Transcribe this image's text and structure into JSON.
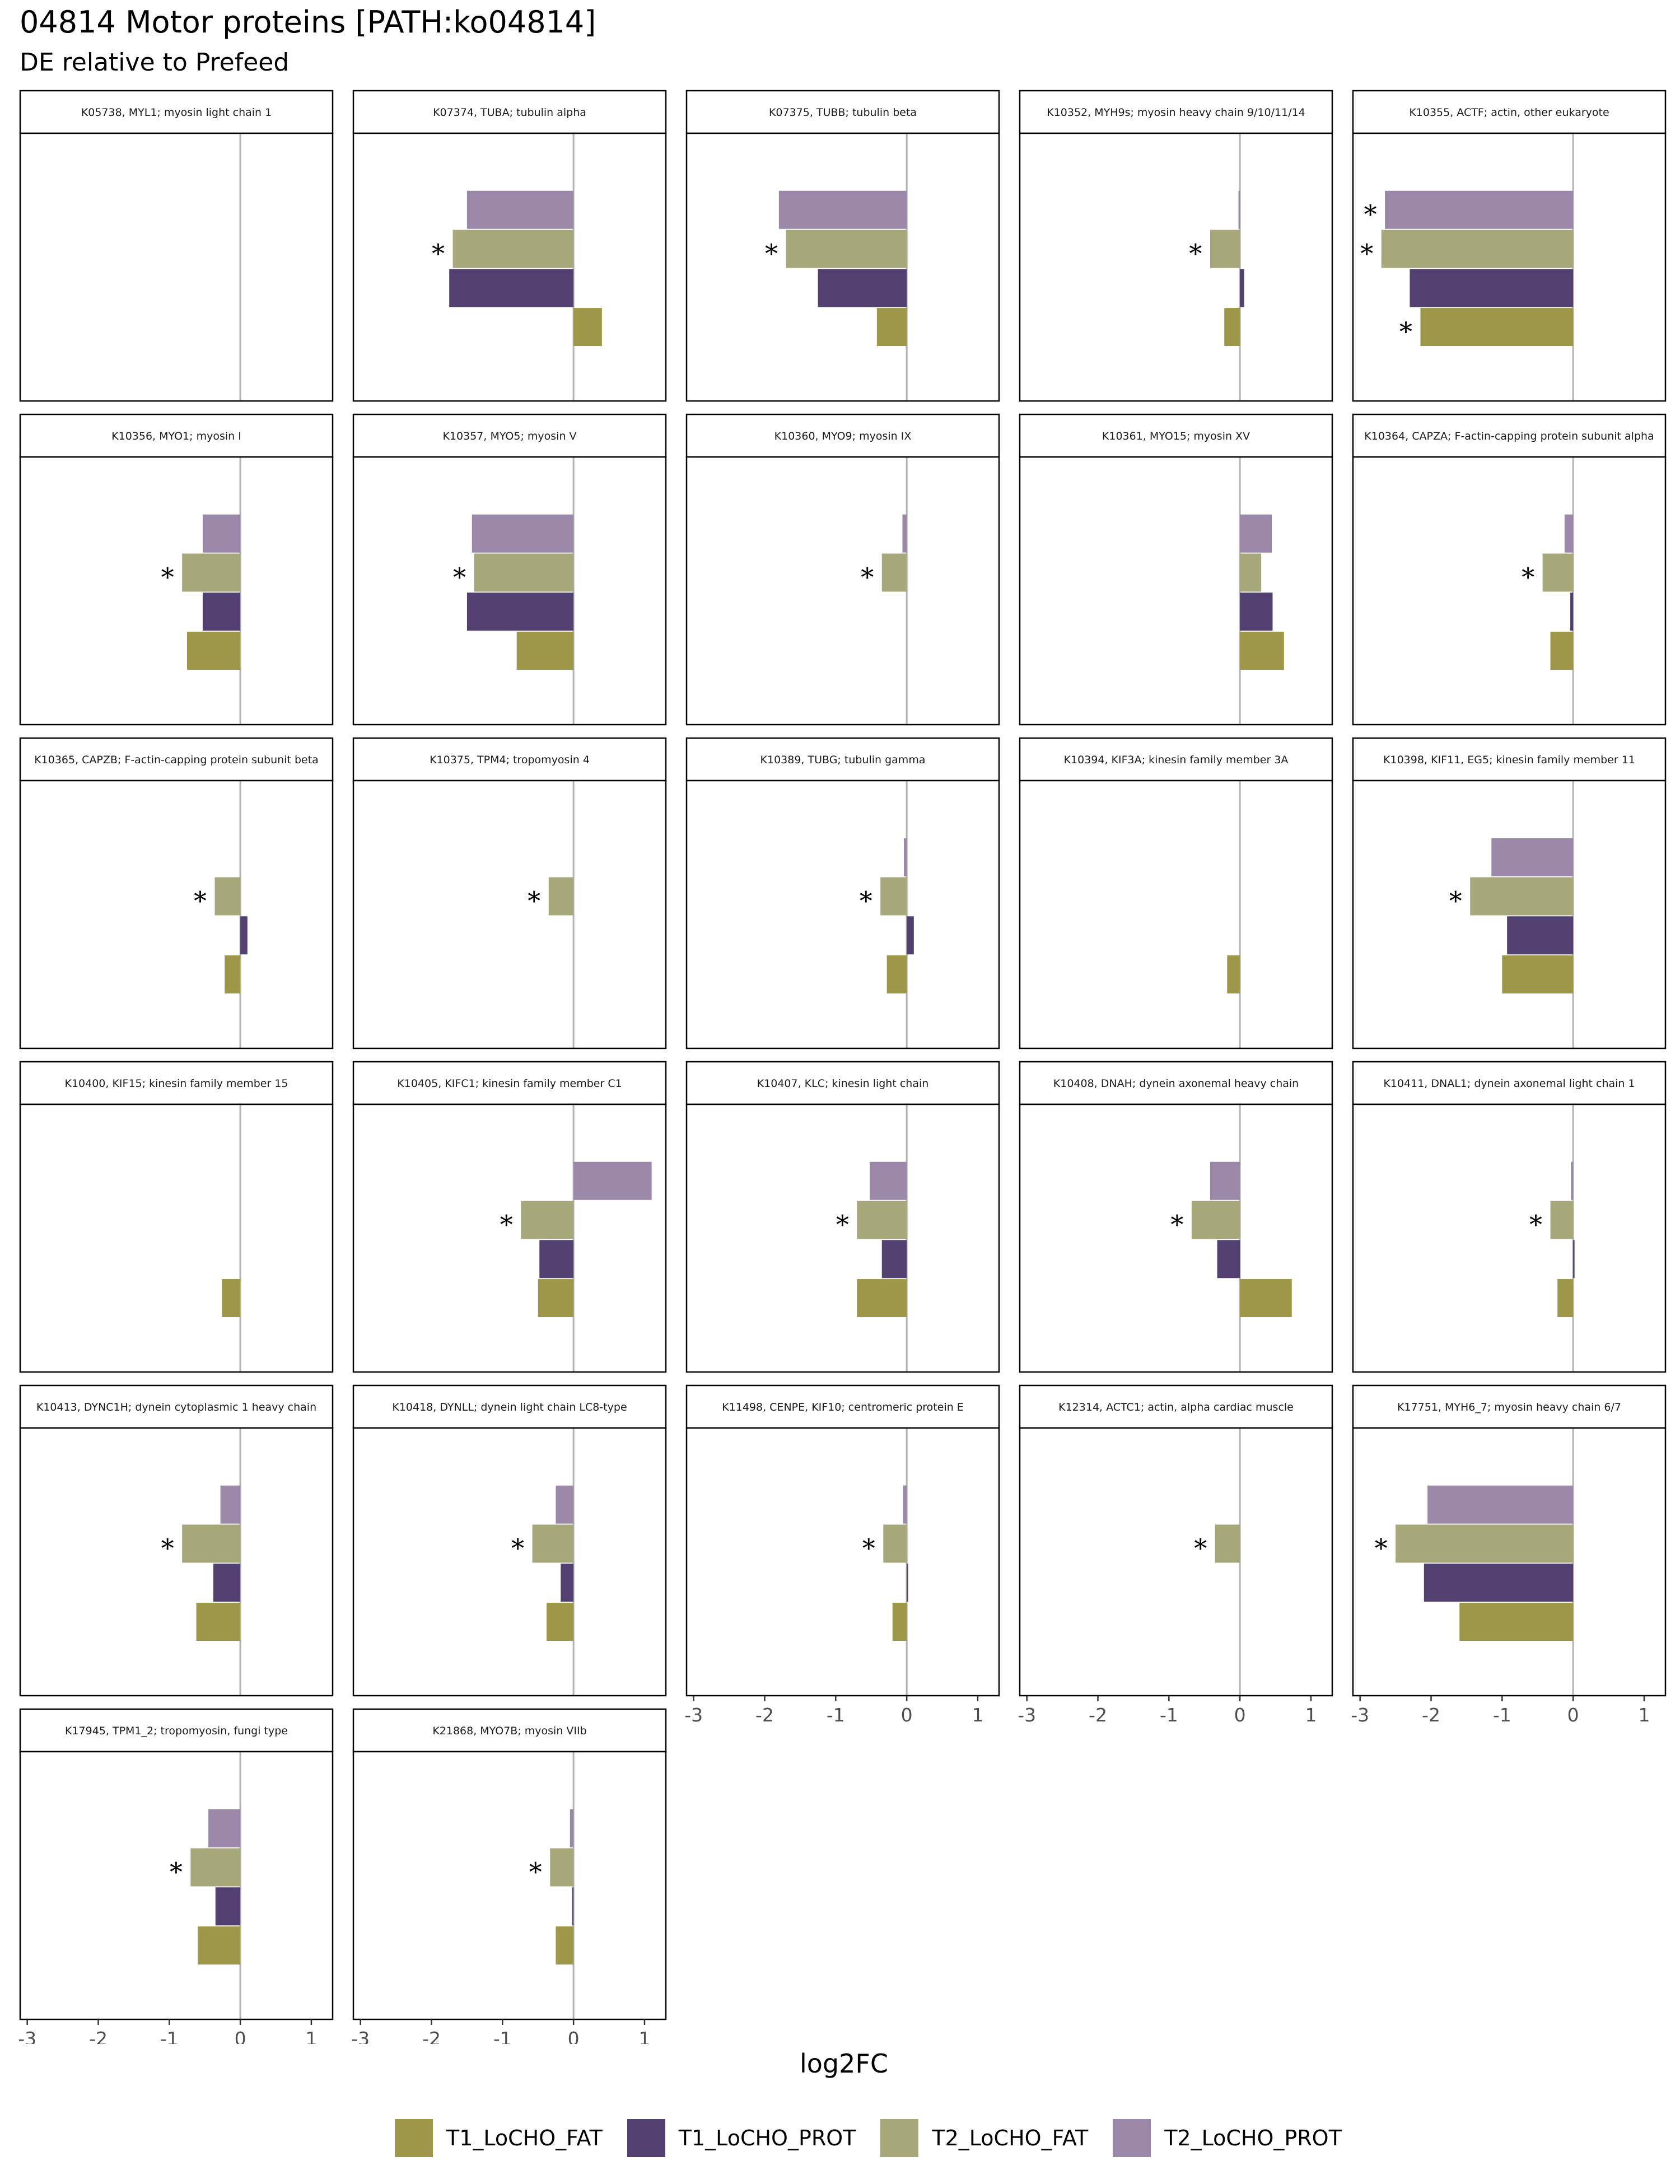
{
  "title": "04814 Motor proteins [PATH:ko04814]",
  "subtitle": "DE relative to Prefeed",
  "colors": {
    "T1_LoCHO_FAT": "#9e9749",
    "T1_LoCHO_PROT": "#524070",
    "T2_LoCHO_FAT": "#a7a87a",
    "T2_LoCHO_PROT": "#9b87a7"
  },
  "chart_data": {
    "type": "bar",
    "orientation": "horizontal",
    "xlabel": "log2FC",
    "xlim": [
      -3.1,
      1.3
    ],
    "xticks": [
      -3,
      -2,
      -1,
      0,
      1
    ],
    "xtick_labels": [
      "-3",
      "-2",
      "-1",
      "0",
      "1"
    ],
    "legend_position": "bottom",
    "significance_marker": "*",
    "series": [
      {
        "name": "T1_LoCHO_FAT"
      },
      {
        "name": "T1_LoCHO_PROT"
      },
      {
        "name": "T2_LoCHO_FAT"
      },
      {
        "name": "T2_LoCHO_PROT"
      }
    ],
    "facets": [
      {
        "title": "K05738, MYL1; myosin light chain 1",
        "values": [
          null,
          null,
          null,
          null
        ],
        "sig": [
          false,
          false,
          false,
          false
        ]
      },
      {
        "title": "K07374, TUBA; tubulin alpha",
        "values": [
          0.4,
          -1.75,
          -1.7,
          -1.5
        ],
        "sig": [
          false,
          false,
          true,
          false
        ]
      },
      {
        "title": "K07375, TUBB; tubulin beta",
        "values": [
          -0.42,
          -1.25,
          -1.7,
          -1.8
        ],
        "sig": [
          false,
          false,
          true,
          false
        ]
      },
      {
        "title": "K10352, MYH9s; myosin heavy chain 9/10/11/14",
        "values": [
          -0.22,
          0.06,
          -0.42,
          -0.02
        ],
        "sig": [
          false,
          false,
          true,
          false
        ]
      },
      {
        "title": "K10355, ACTF; actin, other eukaryote",
        "values": [
          -2.15,
          -2.3,
          -2.7,
          -2.65
        ],
        "sig": [
          true,
          false,
          true,
          true
        ]
      },
      {
        "title": "K10356, MYO1; myosin I",
        "values": [
          -0.75,
          -0.53,
          -0.82,
          -0.53
        ],
        "sig": [
          false,
          false,
          true,
          false
        ]
      },
      {
        "title": "K10357, MYO5; myosin V",
        "values": [
          -0.8,
          -1.5,
          -1.4,
          -1.43
        ],
        "sig": [
          false,
          false,
          true,
          false
        ]
      },
      {
        "title": "K10360, MYO9; myosin IX",
        "values": [
          null,
          null,
          -0.35,
          -0.06
        ],
        "sig": [
          false,
          false,
          true,
          false
        ]
      },
      {
        "title": "K10361, MYO15; myosin XV",
        "values": [
          0.62,
          0.46,
          0.3,
          0.45
        ],
        "sig": [
          false,
          false,
          false,
          false
        ]
      },
      {
        "title": "K10364, CAPZA; F-actin-capping protein subunit alpha",
        "values": [
          -0.32,
          -0.04,
          -0.43,
          -0.12
        ],
        "sig": [
          false,
          false,
          true,
          false
        ]
      },
      {
        "title": "K10365, CAPZB; F-actin-capping protein subunit beta",
        "values": [
          -0.22,
          0.1,
          -0.36,
          null
        ],
        "sig": [
          false,
          false,
          true,
          false
        ]
      },
      {
        "title": "K10375, TPM4; tropomyosin 4",
        "values": [
          null,
          null,
          -0.35,
          null
        ],
        "sig": [
          false,
          false,
          true,
          false
        ]
      },
      {
        "title": "K10389, TUBG; tubulin gamma",
        "values": [
          -0.28,
          0.1,
          -0.37,
          -0.04
        ],
        "sig": [
          false,
          false,
          true,
          false
        ]
      },
      {
        "title": "K10394, KIF3A; kinesin family member 3A",
        "values": [
          -0.18,
          null,
          null,
          null
        ],
        "sig": [
          false,
          false,
          false,
          false
        ]
      },
      {
        "title": "K10398, KIF11, EG5; kinesin family member 11",
        "values": [
          -1.0,
          -0.93,
          -1.45,
          -1.15
        ],
        "sig": [
          false,
          false,
          true,
          false
        ]
      },
      {
        "title": "K10400, KIF15; kinesin family member 15",
        "values": [
          -0.26,
          null,
          null,
          null
        ],
        "sig": [
          false,
          false,
          false,
          false
        ]
      },
      {
        "title": "K10405, KIFC1; kinesin family member C1",
        "values": [
          -0.5,
          -0.48,
          -0.74,
          1.1
        ],
        "sig": [
          false,
          false,
          true,
          false
        ]
      },
      {
        "title": "K10407, KLC; kinesin light chain",
        "values": [
          -0.7,
          -0.35,
          -0.7,
          -0.52
        ],
        "sig": [
          false,
          false,
          true,
          false
        ]
      },
      {
        "title": "K10408, DNAH; dynein axonemal heavy chain",
        "values": [
          0.73,
          -0.32,
          -0.68,
          -0.42
        ],
        "sig": [
          false,
          false,
          true,
          false
        ]
      },
      {
        "title": "K10411, DNAL1; dynein axonemal light chain 1",
        "values": [
          -0.22,
          0.02,
          -0.32,
          -0.03
        ],
        "sig": [
          false,
          false,
          true,
          false
        ]
      },
      {
        "title": "K10413, DYNC1H; dynein cytoplasmic 1 heavy chain",
        "values": [
          -0.62,
          -0.38,
          -0.82,
          -0.28
        ],
        "sig": [
          false,
          false,
          true,
          false
        ]
      },
      {
        "title": "K10418, DYNLL; dynein light chain LC8-type",
        "values": [
          -0.38,
          -0.18,
          -0.58,
          -0.25
        ],
        "sig": [
          false,
          false,
          true,
          false
        ]
      },
      {
        "title": "K11498, CENPE, KIF10; centromeric protein E",
        "values": [
          -0.2,
          0.02,
          -0.33,
          -0.05
        ],
        "sig": [
          false,
          false,
          true,
          false
        ]
      },
      {
        "title": "K12314, ACTC1; actin, alpha cardiac muscle",
        "values": [
          null,
          null,
          -0.35,
          null
        ],
        "sig": [
          false,
          false,
          true,
          false
        ]
      },
      {
        "title": "K17751, MYH6_7; myosin heavy chain 6/7",
        "values": [
          -1.6,
          -2.1,
          -2.5,
          -2.05
        ],
        "sig": [
          false,
          false,
          true,
          false
        ]
      },
      {
        "title": "K17945, TPM1_2; tropomyosin, fungi type",
        "values": [
          -0.6,
          -0.35,
          -0.7,
          -0.45
        ],
        "sig": [
          false,
          false,
          true,
          false
        ]
      },
      {
        "title": "K21868, MYO7B; myosin VIIb",
        "values": [
          -0.25,
          -0.02,
          -0.33,
          -0.05
        ],
        "sig": [
          false,
          false,
          true,
          false
        ]
      }
    ]
  }
}
